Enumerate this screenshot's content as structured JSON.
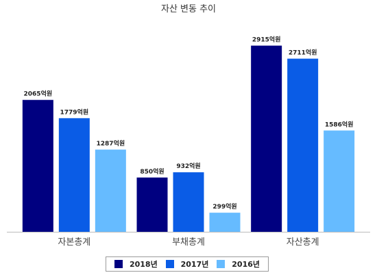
{
  "chart_data": {
    "type": "bar",
    "title": "자산 변동 추이",
    "categories": [
      "자본총계",
      "부채총계",
      "자산총계"
    ],
    "series": [
      {
        "name": "2018년",
        "values": [
          2065,
          850,
          2915
        ],
        "labels": [
          "2065억원",
          "850억원",
          "2915억원"
        ],
        "color": "#000080"
      },
      {
        "name": "2017년",
        "values": [
          1779,
          932,
          2711
        ],
        "labels": [
          "1779억원",
          "932억원",
          "2711억원"
        ],
        "color": "#0a5ce6"
      },
      {
        "name": "2016년",
        "values": [
          1287,
          299,
          1586
        ],
        "labels": [
          "1287억원",
          "299억원",
          "1586억원"
        ],
        "color": "#66bbff"
      }
    ],
    "unit": "억원",
    "ylim": [
      0,
      3200
    ],
    "grid": false,
    "legend_position": "bottom"
  }
}
